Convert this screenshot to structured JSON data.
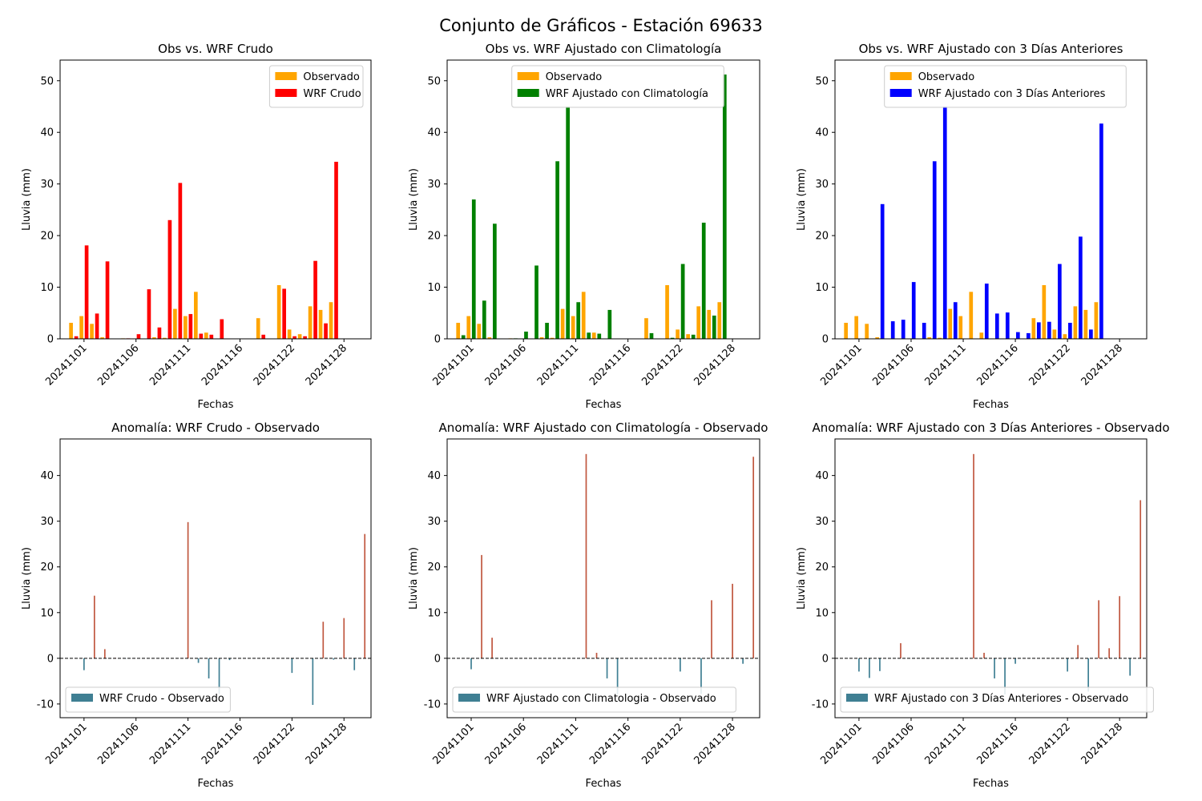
{
  "figure_title": "Conjunto de Gráficos - Estación 69633",
  "colors": {
    "observado": "#FFA500",
    "crudo": "#FF0000",
    "clim": "#008000",
    "tres": "#0000FF",
    "anom_pos": "#C0573F",
    "anom_neg": "#3F7F93"
  },
  "chart_data": [
    {
      "type": "bar",
      "title": "Obs vs. WRF Crudo",
      "xlabel": "Fechas",
      "ylabel": "Lluvia (mm)",
      "ylim": [
        0,
        54
      ],
      "yticks": [
        0,
        10,
        20,
        30,
        40,
        50
      ],
      "xtick_labels": [
        "20241101",
        "20241106",
        "20241111",
        "20241116",
        "20241122",
        "20241128"
      ],
      "legend": "top-right",
      "series": [
        {
          "name": "Observado",
          "color_key": "observado",
          "offset": -0.25,
          "points": [
            [
              -1,
              3.1
            ],
            [
              0,
              4.4
            ],
            [
              1,
              2.9
            ],
            [
              2,
              0.3
            ],
            [
              4,
              0.1
            ],
            [
              7,
              0.3
            ],
            [
              8,
              0.2
            ],
            [
              9,
              5.8
            ],
            [
              10,
              4.4
            ],
            [
              11,
              9.1
            ],
            [
              12,
              1.2
            ],
            [
              17,
              4.0
            ],
            [
              19,
              10.4
            ],
            [
              20,
              1.8
            ],
            [
              21,
              0.9
            ],
            [
              22,
              6.3
            ],
            [
              23,
              5.6
            ],
            [
              24,
              7.1
            ]
          ]
        },
        {
          "name": "WRF Crudo",
          "color_key": "crudo",
          "offset": 0.25,
          "points": [
            [
              -1,
              0.5
            ],
            [
              0,
              18.1
            ],
            [
              1,
              4.9
            ],
            [
              2,
              15.0
            ],
            [
              4,
              0.1
            ],
            [
              5,
              0.9
            ],
            [
              6,
              9.6
            ],
            [
              7,
              2.2
            ],
            [
              8,
              23.0
            ],
            [
              9,
              30.2
            ],
            [
              10,
              4.8
            ],
            [
              11,
              1.0
            ],
            [
              12,
              0.8
            ],
            [
              13,
              3.8
            ],
            [
              17,
              0.8
            ],
            [
              19,
              9.7
            ],
            [
              20,
              0.5
            ],
            [
              21,
              0.5
            ],
            [
              22,
              15.1
            ],
            [
              23,
              3.0
            ],
            [
              24,
              34.3
            ]
          ]
        }
      ]
    },
    {
      "type": "bar",
      "title": "Obs vs. WRF Ajustado con Climatología",
      "xlabel": "Fechas",
      "ylabel": "Lluvia (mm)",
      "ylim": [
        0,
        54
      ],
      "yticks": [
        0,
        10,
        20,
        30,
        40,
        50
      ],
      "xtick_labels": [
        "20241101",
        "20241106",
        "20241111",
        "20241116",
        "20241122",
        "20241128"
      ],
      "legend": "top-center",
      "series": [
        {
          "name": "Observado",
          "color_key": "observado",
          "offset": -0.25,
          "points": [
            [
              -1,
              3.1
            ],
            [
              0,
              4.4
            ],
            [
              1,
              2.9
            ],
            [
              2,
              0.3
            ],
            [
              4,
              0.1
            ],
            [
              7,
              0.3
            ],
            [
              8,
              0.2
            ],
            [
              9,
              5.8
            ],
            [
              10,
              4.4
            ],
            [
              11,
              9.1
            ],
            [
              12,
              1.2
            ],
            [
              17,
              4.0
            ],
            [
              19,
              10.4
            ],
            [
              20,
              1.8
            ],
            [
              21,
              0.9
            ],
            [
              22,
              6.3
            ],
            [
              23,
              5.6
            ],
            [
              24,
              7.1
            ]
          ]
        },
        {
          "name": "WRF Ajustado con Climatología",
          "color_key": "clim",
          "offset": 0.25,
          "points": [
            [
              -1,
              0.7
            ],
            [
              0,
              27.0
            ],
            [
              1,
              7.4
            ],
            [
              2,
              22.3
            ],
            [
              4,
              0.1
            ],
            [
              5,
              1.4
            ],
            [
              6,
              14.2
            ],
            [
              7,
              3.1
            ],
            [
              8,
              34.4
            ],
            [
              9,
              45.0
            ],
            [
              10,
              7.1
            ],
            [
              11,
              1.2
            ],
            [
              12,
              1.0
            ],
            [
              13,
              5.6
            ],
            [
              17,
              1.1
            ],
            [
              19,
              0.2
            ],
            [
              20,
              14.5
            ],
            [
              21,
              0.8
            ],
            [
              22,
              22.5
            ],
            [
              23,
              4.5
            ],
            [
              24,
              51.2
            ]
          ]
        }
      ]
    },
    {
      "type": "bar",
      "title": "Obs vs. WRF Ajustado con 3 Días Anteriores",
      "xlabel": "Fechas",
      "ylabel": "Lluvia (mm)",
      "ylim": [
        0,
        54
      ],
      "yticks": [
        0,
        10,
        20,
        30,
        40,
        50
      ],
      "xtick_labels": [
        "20241101",
        "20241106",
        "20241111",
        "20241116",
        "20241122",
        "20241128"
      ],
      "legend": "top-center",
      "series": [
        {
          "name": "Observado",
          "color_key": "observado",
          "offset": -0.25,
          "points": [
            [
              -1,
              3.1
            ],
            [
              0,
              4.4
            ],
            [
              1,
              2.9
            ],
            [
              2,
              0.3
            ],
            [
              7,
              0.3
            ],
            [
              8,
              0.2
            ],
            [
              9,
              5.8
            ],
            [
              10,
              4.4
            ],
            [
              11,
              9.1
            ],
            [
              12,
              1.2
            ],
            [
              17,
              4.0
            ],
            [
              18,
              10.4
            ],
            [
              19,
              1.8
            ],
            [
              20,
              0.9
            ],
            [
              21,
              6.3
            ],
            [
              22,
              5.6
            ],
            [
              23,
              7.1
            ]
          ]
        },
        {
          "name": "WRF Ajustado con 3 Días Anteriores",
          "color_key": "tres",
          "offset": 0.25,
          "points": [
            [
              2,
              26.1
            ],
            [
              3,
              3.4
            ],
            [
              4,
              3.7
            ],
            [
              5,
              11.0
            ],
            [
              6,
              3.1
            ],
            [
              7,
              34.4
            ],
            [
              8,
              45.0
            ],
            [
              9,
              7.1
            ],
            [
              12,
              10.7
            ],
            [
              13,
              4.9
            ],
            [
              14,
              5.1
            ],
            [
              15,
              1.3
            ],
            [
              16,
              1.1
            ],
            [
              17,
              3.2
            ],
            [
              18,
              3.3
            ],
            [
              19,
              14.5
            ],
            [
              20,
              3.1
            ],
            [
              21,
              19.8
            ],
            [
              22,
              1.8
            ],
            [
              23,
              41.7
            ]
          ]
        }
      ]
    },
    {
      "type": "bar",
      "title": "Anomalía: WRF Crudo - Observado",
      "xlabel": "Fechas",
      "ylabel": "Lluvia (mm)",
      "ylim": [
        -13,
        48
      ],
      "yticks": [
        -10,
        0,
        10,
        20,
        30,
        40
      ],
      "xtick_labels": [
        "20241101",
        "20241106",
        "20241111",
        "20241116",
        "20241122",
        "20241128"
      ],
      "legend": "bottom-left",
      "zero_line": true,
      "series": [
        {
          "name": "WRF Crudo - Observado",
          "color_key": "anom_neg",
          "offset": 0,
          "points": [
            [
              0,
              -2.6
            ],
            [
              1,
              13.7
            ],
            [
              2,
              2.0
            ],
            [
              3,
              0.1
            ],
            [
              4,
              -0.1
            ],
            [
              10,
              29.8
            ],
            [
              11,
              -1.0
            ],
            [
              12,
              -4.4
            ],
            [
              13,
              -7.8
            ],
            [
              14,
              -0.4
            ],
            [
              20,
              -3.2
            ],
            [
              22,
              -10.2
            ],
            [
              23,
              8.0
            ],
            [
              24,
              -0.3
            ],
            [
              25,
              8.8
            ],
            [
              26,
              -2.6
            ],
            [
              27,
              27.2
            ]
          ]
        }
      ]
    },
    {
      "type": "bar",
      "title": "Anomalía: WRF Ajustado con Climatología - Observado",
      "xlabel": "Fechas",
      "ylabel": "Lluvia (mm)",
      "ylim": [
        -13,
        48
      ],
      "yticks": [
        -10,
        0,
        10,
        20,
        30,
        40
      ],
      "xtick_labels": [
        "20241101",
        "20241106",
        "20241111",
        "20241116",
        "20241122",
        "20241128"
      ],
      "legend": "bottom-left",
      "zero_line": true,
      "series": [
        {
          "name": "WRF Ajustado con Climatologia - Observado",
          "color_key": "anom_neg",
          "offset": 0,
          "points": [
            [
              0,
              -2.4
            ],
            [
              1,
              22.6
            ],
            [
              2,
              4.5
            ],
            [
              11,
              44.7
            ],
            [
              12,
              1.2
            ],
            [
              13,
              -4.4
            ],
            [
              14,
              -7.9
            ],
            [
              20,
              -2.9
            ],
            [
              22,
              -7.8
            ],
            [
              23,
              12.7
            ],
            [
              25,
              16.3
            ],
            [
              26,
              -1.2
            ],
            [
              27,
              44.1
            ]
          ]
        }
      ]
    },
    {
      "type": "bar",
      "title": "Anomalía: WRF Ajustado con 3 Días Anteriores - Observado",
      "xlabel": "Fechas",
      "ylabel": "Lluvia (mm)",
      "ylim": [
        -13,
        48
      ],
      "yticks": [
        -10,
        0,
        10,
        20,
        30,
        40
      ],
      "xtick_labels": [
        "20241101",
        "20241106",
        "20241111",
        "20241116",
        "20241122",
        "20241128"
      ],
      "legend": "bottom-left",
      "zero_line": true,
      "series": [
        {
          "name": "WRF Ajustado con 3 Días Anteriores - Observado",
          "color_key": "anom_neg",
          "offset": 0,
          "points": [
            [
              0,
              -2.9
            ],
            [
              1,
              -4.3
            ],
            [
              2,
              -2.8
            ],
            [
              4,
              3.3
            ],
            [
              11,
              44.7
            ],
            [
              12,
              1.2
            ],
            [
              13,
              -4.4
            ],
            [
              14,
              -7.9
            ],
            [
              15,
              -1.2
            ],
            [
              20,
              -2.9
            ],
            [
              21,
              2.9
            ],
            [
              22,
              -7.3
            ],
            [
              23,
              12.7
            ],
            [
              24,
              2.2
            ],
            [
              25,
              13.6
            ],
            [
              26,
              -3.8
            ],
            [
              27,
              34.6
            ]
          ]
        }
      ]
    }
  ]
}
